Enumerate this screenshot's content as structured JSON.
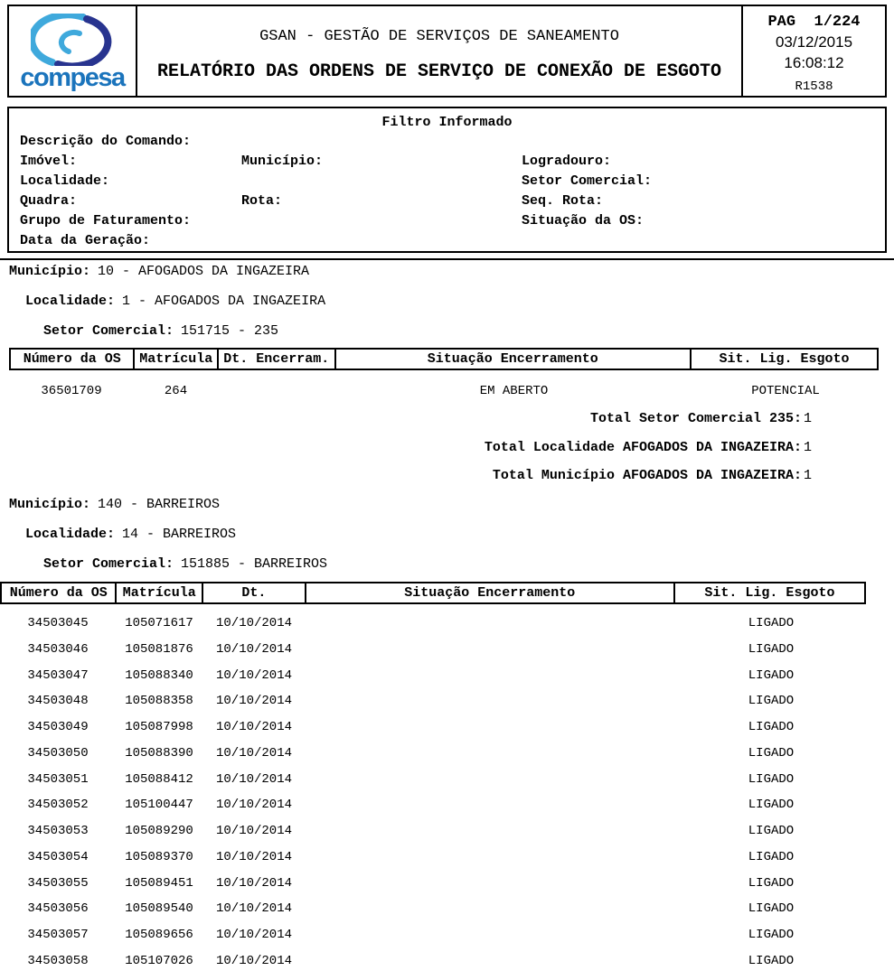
{
  "header": {
    "logo_text": "compesa",
    "title_line1": "GSAN - GESTÃO DE SERVIÇOS DE SANEAMENTO",
    "title_line2": "RELATÓRIO DAS ORDENS DE SERVIÇO DE CONEXÃO DE ESGOTO",
    "page": "PAG  1/224",
    "date": "03/12/2015",
    "time": "16:08:12",
    "report_code": "R1538"
  },
  "filter": {
    "title": "Filtro Informado",
    "labels": {
      "descricao_comando": "Descrição do Comando:",
      "imovel": "Imóvel:",
      "municipio": "Município:",
      "logradouro": "Logradouro:",
      "localidade": "Localidade:",
      "setor_comercial": "Setor Comercial:",
      "quadra": "Quadra:",
      "rota": "Rota:",
      "seq_rota": "Seq. Rota:",
      "grupo_faturamento": "Grupo de Faturamento:",
      "situacao_os": "Situação da OS:",
      "data_geracao": "Data da Geração:"
    }
  },
  "sections": [
    {
      "municipio_label": "Município:",
      "municipio_value": "10 - AFOGADOS DA INGAZEIRA",
      "localidade_label": "Localidade:",
      "localidade_value": "1 - AFOGADOS DA INGAZEIRA",
      "setor_label": "Setor Comercial:",
      "setor_value": "151715 - 235",
      "table": {
        "headers": [
          "Número da OS",
          "Matrícula",
          "Dt. Encerram.",
          "Situação Encerramento",
          "Sit. Lig. Esgoto"
        ],
        "rows": [
          [
            "36501709",
            "264",
            "",
            "EM ABERTO",
            "POTENCIAL"
          ]
        ]
      },
      "totals": [
        {
          "label": "Total Setor Comercial 235:",
          "value": "1"
        },
        {
          "label": "Total Localidade AFOGADOS DA INGAZEIRA:",
          "value": "1"
        },
        {
          "label": "Total Município AFOGADOS DA INGAZEIRA:",
          "value": "1"
        }
      ]
    },
    {
      "municipio_label": "Município:",
      "municipio_value": "140 - BARREIROS",
      "localidade_label": "Localidade:",
      "localidade_value": "14 - BARREIROS",
      "setor_label": "Setor Comercial:",
      "setor_value": "151885 - BARREIROS",
      "table": {
        "headers": [
          "Número da OS",
          "Matrícula",
          "Dt. Encerram.",
          "Situação Encerramento",
          "Sit. Lig. Esgoto"
        ],
        "rows": [
          [
            "34503045",
            "105071617",
            "10/10/2014",
            "",
            "LIGADO"
          ],
          [
            "34503046",
            "105081876",
            "10/10/2014",
            "",
            "LIGADO"
          ],
          [
            "34503047",
            "105088340",
            "10/10/2014",
            "",
            "LIGADO"
          ],
          [
            "34503048",
            "105088358",
            "10/10/2014",
            "",
            "LIGADO"
          ],
          [
            "34503049",
            "105087998",
            "10/10/2014",
            "",
            "LIGADO"
          ],
          [
            "34503050",
            "105088390",
            "10/10/2014",
            "",
            "LIGADO"
          ],
          [
            "34503051",
            "105088412",
            "10/10/2014",
            "",
            "LIGADO"
          ],
          [
            "34503052",
            "105100447",
            "10/10/2014",
            "",
            "LIGADO"
          ],
          [
            "34503053",
            "105089290",
            "10/10/2014",
            "",
            "LIGADO"
          ],
          [
            "34503054",
            "105089370",
            "10/10/2014",
            "",
            "LIGADO"
          ],
          [
            "34503055",
            "105089451",
            "10/10/2014",
            "",
            "LIGADO"
          ],
          [
            "34503056",
            "105089540",
            "10/10/2014",
            "",
            "LIGADO"
          ],
          [
            "34503057",
            "105089656",
            "10/10/2014",
            "",
            "LIGADO"
          ],
          [
            "34503058",
            "105107026",
            "10/10/2014",
            "",
            "LIGADO"
          ]
        ]
      },
      "totals": []
    }
  ],
  "colors": {
    "logo_navy": "#28348f",
    "logo_light_blue": "#3fa9dc",
    "logo_text_blue": "#1b74bc",
    "text": "#000000",
    "background": "#ffffff"
  }
}
